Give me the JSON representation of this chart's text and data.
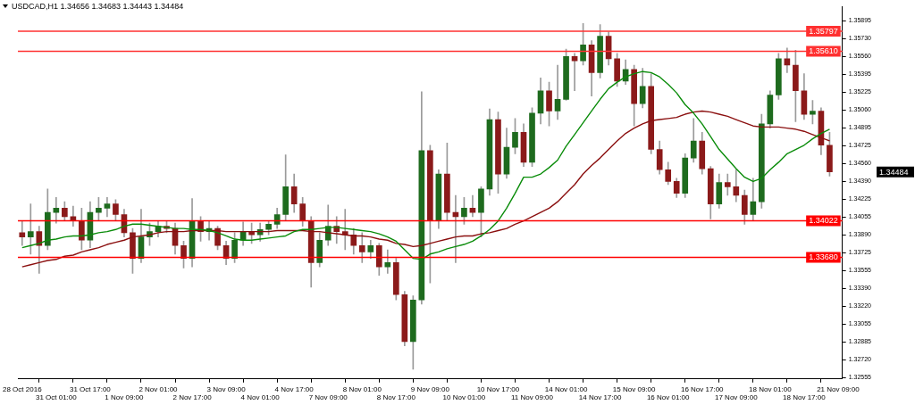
{
  "chart_data": {
    "type": "candlestick",
    "title": "USDCAD,H1  1.34656 1.34683 1.34443 1.34484",
    "categories": [
      "28 Oct 2016",
      null,
      null,
      null,
      "31 Oct 01:00",
      null,
      null,
      null,
      "31 Oct 17:00",
      null,
      null,
      null,
      "1 Nov 09:00",
      null,
      null,
      null,
      "2 Nov 01:00",
      null,
      null,
      null,
      "2 Nov 17:00",
      null,
      null,
      null,
      "3 Nov 09:00",
      null,
      null,
      null,
      "4 Nov 01:00",
      null,
      null,
      null,
      "4 Nov 17:00",
      null,
      null,
      null,
      "7 Nov 09:00",
      null,
      null,
      null,
      "8 Nov 01:00",
      null,
      null,
      null,
      "8 Nov 17:00",
      null,
      null,
      null,
      "9 Nov 09:00",
      null,
      null,
      null,
      "10 Nov 01:00",
      null,
      null,
      null,
      "10 Nov 17:00",
      null,
      null,
      null,
      "11 Nov 09:00",
      null,
      null,
      null,
      "14 Nov 01:00",
      null,
      null,
      null,
      "14 Nov 17:00",
      null,
      null,
      null,
      "15 Nov 09:00",
      null,
      null,
      null,
      "16 Nov 01:00",
      null,
      null,
      null,
      "16 Nov 17:00",
      null,
      null,
      null,
      "17 Nov 09:00",
      null,
      null,
      null,
      "18 Nov 01:00",
      null,
      null,
      null,
      "18 Nov 17:00",
      null,
      null,
      null,
      "21 Nov 09:00"
    ],
    "ohlc": [
      [
        1.3391,
        1.3402,
        1.3379,
        1.3387
      ],
      [
        1.3387,
        1.3418,
        1.3371,
        1.3392
      ],
      [
        1.3392,
        1.3397,
        1.3353,
        1.3379
      ],
      [
        1.3379,
        1.3432,
        1.3375,
        1.341
      ],
      [
        1.341,
        1.3424,
        1.34,
        1.3414
      ],
      [
        1.3414,
        1.342,
        1.3402,
        1.3406
      ],
      [
        1.3406,
        1.3416,
        1.3397,
        1.3402
      ],
      [
        1.3402,
        1.3414,
        1.3375,
        1.3384
      ],
      [
        1.3384,
        1.342,
        1.3377,
        1.341
      ],
      [
        1.341,
        1.3424,
        1.3402,
        1.3414
      ],
      [
        1.3414,
        1.3424,
        1.3406,
        1.3418
      ],
      [
        1.3418,
        1.3422,
        1.3402,
        1.3408
      ],
      [
        1.3408,
        1.3413,
        1.3387,
        1.3391
      ],
      [
        1.3391,
        1.3395,
        1.3353,
        1.3367
      ],
      [
        1.3367,
        1.3413,
        1.3363,
        1.3387
      ],
      [
        1.3387,
        1.34,
        1.3379,
        1.3392
      ],
      [
        1.3392,
        1.3402,
        1.3387,
        1.3397
      ],
      [
        1.3397,
        1.3402,
        1.3391,
        1.3395
      ],
      [
        1.3395,
        1.34,
        1.3371,
        1.3379
      ],
      [
        1.3379,
        1.3383,
        1.3358,
        1.3367
      ],
      [
        1.3367,
        1.3423,
        1.3359,
        1.3402
      ],
      [
        1.3402,
        1.3406,
        1.3383,
        1.3392
      ],
      [
        1.3392,
        1.3402,
        1.3384,
        1.3395
      ],
      [
        1.3395,
        1.3397,
        1.3375,
        1.3379
      ],
      [
        1.3379,
        1.3383,
        1.3361,
        1.3367
      ],
      [
        1.3367,
        1.3391,
        1.3363,
        1.3384
      ],
      [
        1.3384,
        1.3401,
        1.3379,
        1.3392
      ],
      [
        1.3392,
        1.34,
        1.3381,
        1.3389
      ],
      [
        1.3389,
        1.34,
        1.3383,
        1.3394
      ],
      [
        1.3394,
        1.3402,
        1.3389,
        1.3399
      ],
      [
        1.3399,
        1.3414,
        1.3395,
        1.3408
      ],
      [
        1.3408,
        1.3464,
        1.3402,
        1.3434
      ],
      [
        1.3434,
        1.3446,
        1.341,
        1.3418
      ],
      [
        1.3418,
        1.3424,
        1.3397,
        1.3402
      ],
      [
        1.3402,
        1.3406,
        1.334,
        1.3363
      ],
      [
        1.3363,
        1.3391,
        1.3359,
        1.3384
      ],
      [
        1.3384,
        1.3417,
        1.3379,
        1.3397
      ],
      [
        1.3397,
        1.3406,
        1.3381,
        1.3392
      ],
      [
        1.3392,
        1.3413,
        1.3375,
        1.3389
      ],
      [
        1.3389,
        1.3395,
        1.3371,
        1.3379
      ],
      [
        1.3379,
        1.3391,
        1.3363,
        1.3373
      ],
      [
        1.3373,
        1.3384,
        1.3367,
        1.3379
      ],
      [
        1.3379,
        1.3381,
        1.3351,
        1.3359
      ],
      [
        1.3359,
        1.3375,
        1.3353,
        1.3363
      ],
      [
        1.3363,
        1.3367,
        1.3328,
        1.3333
      ],
      [
        1.3333,
        1.3336,
        1.3285,
        1.3289
      ],
      [
        1.3289,
        1.3332,
        1.3263,
        1.3328
      ],
      [
        1.3328,
        1.3523,
        1.3324,
        1.3468
      ],
      [
        1.3468,
        1.3473,
        1.3344,
        1.3402
      ],
      [
        1.3402,
        1.345,
        1.3395,
        1.3446
      ],
      [
        1.3446,
        1.3475,
        1.3402,
        1.341
      ],
      [
        1.341,
        1.3426,
        1.3363,
        1.3406
      ],
      [
        1.3406,
        1.3424,
        1.3399,
        1.3414
      ],
      [
        1.3414,
        1.3426,
        1.3406,
        1.341
      ],
      [
        1.341,
        1.3434,
        1.3387,
        1.3432
      ],
      [
        1.3432,
        1.3507,
        1.3426,
        1.3497
      ],
      [
        1.3497,
        1.3504,
        1.3428,
        1.3446
      ],
      [
        1.3446,
        1.3489,
        1.3442,
        1.3471
      ],
      [
        1.3471,
        1.3498,
        1.3465,
        1.3485
      ],
      [
        1.3485,
        1.3493,
        1.3453,
        1.3457
      ],
      [
        1.3457,
        1.3508,
        1.3453,
        1.3503
      ],
      [
        1.3503,
        1.3536,
        1.3493,
        1.3524
      ],
      [
        1.3524,
        1.3532,
        1.3491,
        1.3505
      ],
      [
        1.3505,
        1.3548,
        1.3497,
        1.3516
      ],
      [
        1.3516,
        1.3563,
        1.3515,
        1.3556
      ],
      [
        1.3556,
        1.3559,
        1.3524,
        1.3552
      ],
      [
        1.3552,
        1.3587,
        1.3548,
        1.3567
      ],
      [
        1.3567,
        1.3571,
        1.3519,
        1.3541
      ],
      [
        1.3541,
        1.3586,
        1.3536,
        1.3575
      ],
      [
        1.3575,
        1.3579,
        1.3548,
        1.3554
      ],
      [
        1.3554,
        1.3559,
        1.3528,
        1.3533
      ],
      [
        1.3533,
        1.3553,
        1.353,
        1.3544
      ],
      [
        1.3544,
        1.3548,
        1.3491,
        1.3512
      ],
      [
        1.3512,
        1.3545,
        1.3508,
        1.3528
      ],
      [
        1.3528,
        1.354,
        1.3465,
        1.3469
      ],
      [
        1.3469,
        1.3477,
        1.3446,
        1.345
      ],
      [
        1.345,
        1.3457,
        1.3436,
        1.3439
      ],
      [
        1.3439,
        1.3442,
        1.3424,
        1.3428
      ],
      [
        1.3428,
        1.3465,
        1.3424,
        1.3461
      ],
      [
        1.3461,
        1.3498,
        1.3457,
        1.3477
      ],
      [
        1.3477,
        1.3485,
        1.3446,
        1.3451
      ],
      [
        1.3451,
        1.3453,
        1.3404,
        1.3418
      ],
      [
        1.3418,
        1.3446,
        1.3414,
        1.3438
      ],
      [
        1.3438,
        1.3446,
        1.3426,
        1.3434
      ],
      [
        1.3434,
        1.345,
        1.342,
        1.3426
      ],
      [
        1.3426,
        1.3431,
        1.3399,
        1.3408
      ],
      [
        1.3408,
        1.3442,
        1.3402,
        1.342
      ],
      [
        1.342,
        1.3502,
        1.3414,
        1.3493
      ],
      [
        1.3493,
        1.3524,
        1.3489,
        1.352
      ],
      [
        1.352,
        1.3559,
        1.3516,
        1.3554
      ],
      [
        1.3554,
        1.3564,
        1.3541,
        1.3548
      ],
      [
        1.3548,
        1.3562,
        1.3495,
        1.3524
      ],
      [
        1.3524,
        1.354,
        1.3497,
        1.3502
      ],
      [
        1.3502,
        1.3515,
        1.3493,
        1.3505
      ],
      [
        1.3505,
        1.3508,
        1.3464,
        1.3473
      ],
      [
        1.3473,
        1.3485,
        1.3444,
        1.3448
      ],
      null
    ],
    "series": [
      {
        "type": "line",
        "color": "#0a8c0a",
        "values": [
          1.3377,
          1.3379,
          1.3381,
          1.3384,
          1.3385,
          1.3387,
          1.3388,
          1.3388,
          1.3389,
          1.3391,
          1.3392,
          1.3394,
          1.3397,
          1.3399,
          1.3399,
          1.3398,
          1.3397,
          1.3396,
          1.3395,
          1.3395,
          1.3394,
          1.3394,
          1.3393,
          1.3391,
          1.3388,
          1.3385,
          1.3384,
          1.3384,
          1.3385,
          1.3386,
          1.3387,
          1.3388,
          1.3392,
          1.3394,
          1.3394,
          1.3395,
          1.3396,
          1.3396,
          1.3395,
          1.3394,
          1.3393,
          1.3392,
          1.339,
          1.3387,
          1.3383,
          1.3375,
          1.3367,
          1.3366,
          1.3371,
          1.3373,
          1.3376,
          1.3378,
          1.338,
          1.3383,
          1.3388,
          1.3394,
          1.3402,
          1.3414,
          1.3428,
          1.3443,
          1.3443,
          1.3446,
          1.3452,
          1.3459,
          1.3472,
          1.3483,
          1.3494,
          1.3505,
          1.3516,
          1.3526,
          1.3532,
          1.3537,
          1.354,
          1.3542,
          1.3541,
          1.3537,
          1.353,
          1.3522,
          1.3511,
          1.3503,
          1.3493,
          1.3481,
          1.3469,
          1.346,
          1.3451,
          1.3443,
          1.3439,
          1.3442,
          1.345,
          1.3457,
          1.3465,
          1.3469,
          1.3473,
          1.3479,
          1.3484,
          1.3488,
          null
        ]
      },
      {
        "type": "line",
        "color": "#8b1010",
        "values": [
          1.3359,
          1.3361,
          1.3363,
          1.3365,
          1.3366,
          1.3369,
          1.337,
          1.3373,
          1.3375,
          1.3377,
          1.338,
          1.3382,
          1.3384,
          1.3387,
          1.3388,
          1.3389,
          1.3391,
          1.3392,
          1.3392,
          1.3392,
          1.3393,
          1.3393,
          1.3393,
          1.3393,
          1.3392,
          1.3392,
          1.3392,
          1.3392,
          1.3392,
          1.3392,
          1.3393,
          1.3393,
          1.3393,
          1.3393,
          1.3392,
          1.3392,
          1.3391,
          1.339,
          1.3389,
          1.3388,
          1.3388,
          1.3387,
          1.3385,
          1.3384,
          1.3381,
          1.338,
          1.3378,
          1.3379,
          1.3381,
          1.3383,
          1.3385,
          1.3387,
          1.3388,
          1.3388,
          1.339,
          1.3391,
          1.3393,
          1.3395,
          1.3399,
          1.3402,
          1.3406,
          1.341,
          1.3414,
          1.342,
          1.3428,
          1.3436,
          1.3446,
          1.3454,
          1.3461,
          1.3469,
          1.3477,
          1.3484,
          1.3489,
          1.3493,
          1.3496,
          1.3497,
          1.3498,
          1.3499,
          1.3502,
          1.3504,
          1.3505,
          1.3504,
          1.3502,
          1.35,
          1.3497,
          1.3494,
          1.3491,
          1.349,
          1.349,
          1.349,
          1.3489,
          1.3488,
          1.3486,
          1.3483,
          1.348,
          1.3477,
          null
        ]
      }
    ],
    "ylim": [
      1.3254,
      1.3603
    ],
    "yticks": [
      1.35895,
      {
        "value": 1.3573,
        "label": "1.35730"
      },
      {
        "value": 1.3556,
        "label": "1.35560"
      },
      1.35395,
      1.35225,
      {
        "value": 1.3506,
        "label": "1.35060"
      },
      1.34895,
      1.34725,
      {
        "value": 1.3456,
        "label": "1.34560"
      },
      {
        "value": 1.3439,
        "label": "1.34390"
      },
      1.34225,
      1.34055,
      {
        "value": 1.3389,
        "label": "1.33890"
      },
      1.33725,
      1.33555,
      {
        "value": 1.3339,
        "label": "1.33390"
      },
      {
        "value": 1.3322,
        "label": "1.33220"
      },
      1.33055,
      1.32885,
      {
        "value": 1.3272,
        "label": "1.32720"
      },
      1.32555
    ],
    "ref_lines": [
      {
        "axis": "y",
        "value": 1.35797,
        "label": "1.35797",
        "color": "#ff3030"
      },
      {
        "axis": "y",
        "value": 1.3561,
        "label": "1.35610",
        "color": "#ff3030"
      },
      {
        "axis": "y",
        "value": 1.34022,
        "label": "1.34022",
        "color": "#ff0000"
      },
      {
        "axis": "y",
        "value": 1.3368,
        "label": "1.33680",
        "color": "#ff0000"
      }
    ],
    "annotations": [
      "1.34484"
    ],
    "legend": false,
    "grid": false
  }
}
